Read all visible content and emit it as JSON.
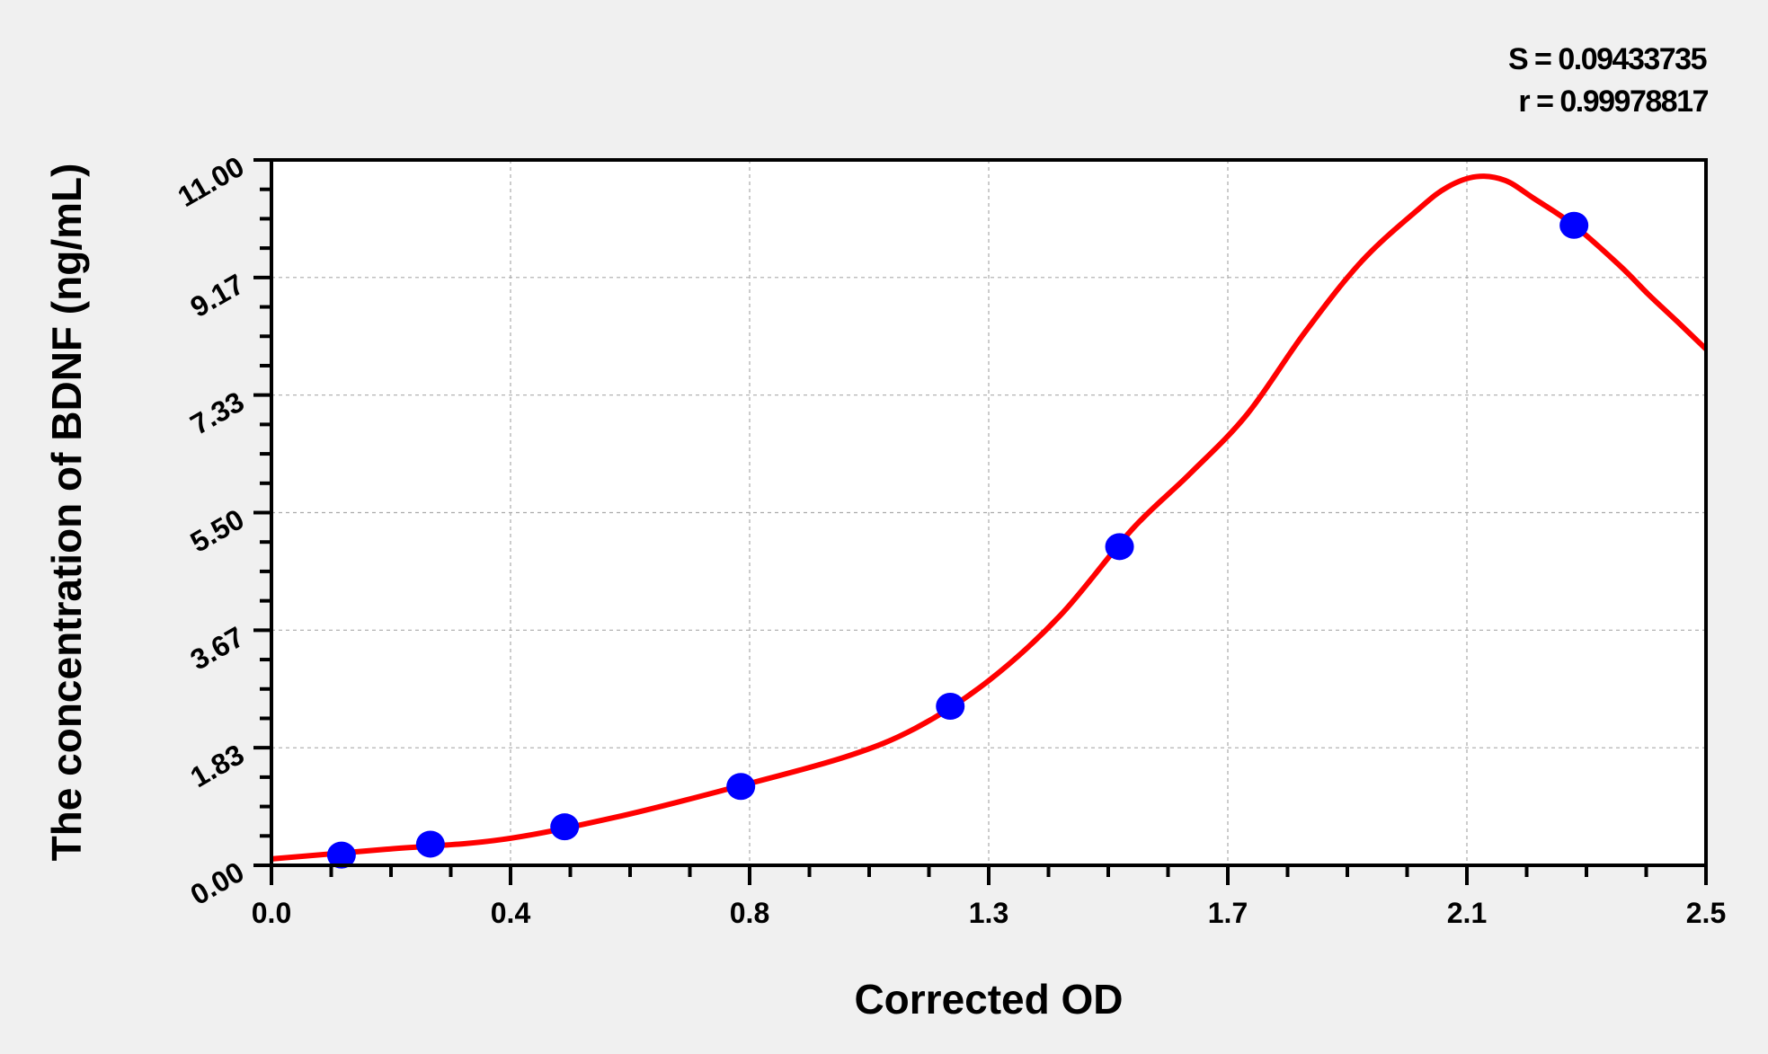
{
  "chart_data": {
    "type": "scatter",
    "xlabel": "Corrected OD",
    "ylabel": "The concentration of BDNF (ng/mL)",
    "xlim": [
      0,
      2.5
    ],
    "ylim": [
      0,
      11
    ],
    "x_ticks": [
      "0.0",
      "0.4",
      "0.8",
      "1.3",
      "1.7",
      "2.1",
      "2.5"
    ],
    "y_ticks": [
      "0.00",
      "1.83",
      "3.67",
      "5.50",
      "7.33",
      "9.17",
      "11.00"
    ],
    "minor_ticks_per_interval": 4,
    "grid": true,
    "stats": {
      "s": "S = 0.09433735",
      "r": "r = 0.99978817"
    },
    "points": {
      "color": "#0000ff",
      "x": [
        0.122,
        0.277,
        0.511,
        0.818,
        1.183,
        1.478,
        2.27
      ],
      "y": [
        0.16,
        0.33,
        0.6,
        1.23,
        2.48,
        4.97,
        9.98
      ]
    },
    "fit_curve": {
      "color": "#ff0000",
      "x": [
        0.0,
        0.2,
        0.4,
        0.6,
        0.8,
        1.0,
        1.125,
        1.25,
        1.375,
        1.5,
        1.6,
        1.7,
        1.8,
        1.9,
        2.0,
        2.05,
        2.1,
        2.15,
        2.2,
        2.27,
        2.35,
        2.4,
        2.45,
        2.5
      ],
      "y": [
        0.1,
        0.25,
        0.4,
        0.75,
        1.2,
        1.69,
        2.15,
        2.88,
        3.9,
        5.24,
        6.1,
        7.03,
        8.3,
        9.42,
        10.24,
        10.58,
        10.74,
        10.68,
        10.4,
        9.98,
        9.35,
        8.9,
        8.48,
        8.05
      ]
    }
  }
}
